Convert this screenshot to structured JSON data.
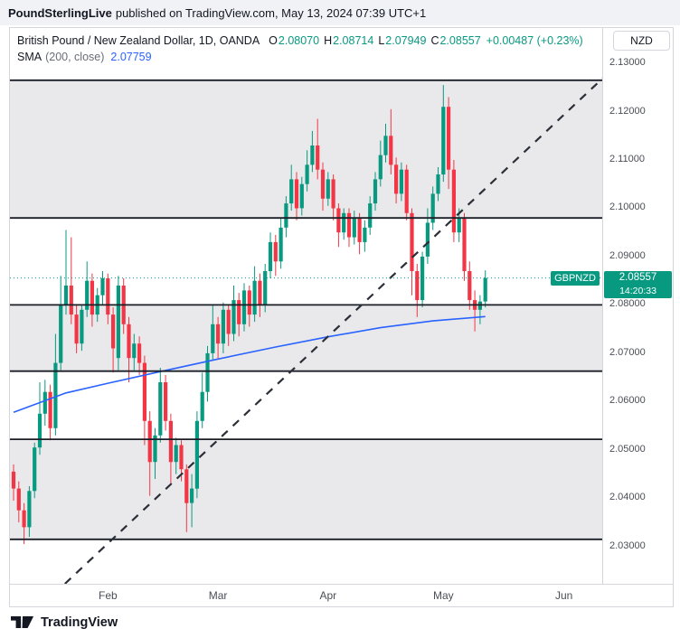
{
  "banner": {
    "brand": "PoundSterlingLive",
    "rest": "published on TradingView.com, May 13, 2024 07:39 UTC+1"
  },
  "header": {
    "title": "British Pound / New Zealand Dollar, 1D, OANDA",
    "o_label": "O",
    "o_value": "2.08070",
    "h_label": "H",
    "h_value": "2.08714",
    "l_label": "L",
    "l_value": "2.07949",
    "c_label": "C",
    "c_value": "2.08557",
    "change": "+0.00487 (+0.23%)",
    "sma_name": "SMA",
    "sma_args": "(200, close)",
    "sma_value": "2.07759"
  },
  "price_tag": {
    "symbol": "GBPNZD",
    "price": "2.08557",
    "countdown": "14:20:33"
  },
  "axis": {
    "currency": "NZD"
  },
  "footer": {
    "brand": "TradingView"
  },
  "chart_data": {
    "type": "candlestick",
    "title": "British Pound / New Zealand Dollar, 1D, OANDA",
    "symbol": "GBPNZD",
    "interval": "1D",
    "price_min": 2.0223,
    "price_max": 2.1373,
    "slots": 113,
    "up_color": "#089981",
    "down_color": "#f23645",
    "band_color": "#e9e9eb",
    "current_price": 2.08557,
    "y_ticks": [
      "2.13000",
      "2.12000",
      "2.11000",
      "2.10000",
      "2.09000",
      "2.08000",
      "2.07000",
      "2.06000",
      "2.05000",
      "2.04000",
      "2.03000"
    ],
    "x_ticks": [
      {
        "slot": 18,
        "label": "Feb"
      },
      {
        "slot": 39,
        "label": "Mar"
      },
      {
        "slot": 60,
        "label": "Apr"
      },
      {
        "slot": 82,
        "label": "May"
      },
      {
        "slot": 105,
        "label": "Jun"
      }
    ],
    "levels": [
      2.1265,
      2.098,
      2.08,
      2.0663,
      2.0522,
      2.0315
    ],
    "bands": [
      [
        2.1265,
        2.098
      ],
      [
        2.08,
        2.0663
      ],
      [
        2.0522,
        2.0315
      ]
    ],
    "trendline": {
      "x1_slot": 9.8,
      "p1": 2.0223,
      "x2_slot": 112.8,
      "p2": 2.1273
    },
    "sma200": {
      "color": "#2962ff",
      "points": [
        [
          0,
          2.0578
        ],
        [
          10,
          2.0618
        ],
        [
          18,
          2.0638
        ],
        [
          28,
          2.0662
        ],
        [
          39,
          2.0688
        ],
        [
          50,
          2.0713
        ],
        [
          60,
          2.0734
        ],
        [
          70,
          2.0753
        ],
        [
          80,
          2.0767
        ],
        [
          90,
          2.0776
        ]
      ]
    },
    "candles": [
      [
        2.0455,
        2.047,
        2.0395,
        2.042
      ],
      [
        2.042,
        2.0435,
        2.035,
        2.0375
      ],
      [
        2.0375,
        2.039,
        2.0305,
        2.034
      ],
      [
        2.034,
        2.0425,
        2.032,
        2.0415
      ],
      [
        2.0415,
        2.0515,
        2.04,
        2.0505
      ],
      [
        2.0505,
        2.064,
        2.049,
        2.0575
      ],
      [
        2.0575,
        2.0645,
        2.055,
        2.062
      ],
      [
        2.062,
        2.0635,
        2.052,
        2.0545
      ],
      [
        2.0545,
        2.074,
        2.053,
        2.068
      ],
      [
        2.068,
        2.086,
        2.0665,
        2.08
      ],
      [
        2.08,
        2.0955,
        2.078,
        2.084
      ],
      [
        2.084,
        2.094,
        2.076,
        2.078
      ],
      [
        2.078,
        2.08,
        2.07,
        2.072
      ],
      [
        2.072,
        2.08,
        2.0705,
        2.079
      ],
      [
        2.079,
        2.089,
        2.0775,
        2.085
      ],
      [
        2.085,
        2.0865,
        2.0755,
        2.078
      ],
      [
        2.078,
        2.0835,
        2.0765,
        2.082
      ],
      [
        2.082,
        2.087,
        2.08,
        2.0855
      ],
      [
        2.0855,
        2.0865,
        2.076,
        2.078
      ],
      [
        2.078,
        2.0795,
        2.066,
        2.071
      ],
      [
        2.069,
        2.086,
        2.0665,
        2.084
      ],
      [
        2.084,
        2.0855,
        2.074,
        2.076
      ],
      [
        2.076,
        2.0775,
        2.064,
        2.069
      ],
      [
        2.069,
        2.074,
        2.0665,
        2.072
      ],
      [
        2.072,
        2.0735,
        2.0655,
        2.068
      ],
      [
        2.068,
        2.0695,
        2.051,
        2.056
      ],
      [
        2.056,
        2.058,
        2.0405,
        2.0475
      ],
      [
        2.0475,
        2.0545,
        2.044,
        2.053
      ],
      [
        2.053,
        2.067,
        2.0515,
        2.064
      ],
      [
        2.064,
        2.0655,
        2.054,
        2.056
      ],
      [
        2.056,
        2.0575,
        2.043,
        2.0475
      ],
      [
        2.0475,
        2.0525,
        2.045,
        2.051
      ],
      [
        2.051,
        2.052,
        2.0435,
        2.046
      ],
      [
        2.046,
        2.047,
        2.033,
        2.039
      ],
      [
        2.039,
        2.045,
        2.034,
        2.042
      ],
      [
        2.042,
        2.058,
        2.04,
        2.056
      ],
      [
        2.056,
        2.066,
        2.0545,
        2.062
      ],
      [
        2.062,
        2.0715,
        2.06,
        2.07
      ],
      [
        2.07,
        2.08,
        2.0685,
        2.076
      ],
      [
        2.076,
        2.0775,
        2.069,
        2.072
      ],
      [
        2.072,
        2.0805,
        2.07,
        2.079
      ],
      [
        2.079,
        2.08,
        2.0715,
        2.074
      ],
      [
        2.074,
        2.084,
        2.0725,
        2.081
      ],
      [
        2.081,
        2.0825,
        2.0735,
        2.076
      ],
      [
        2.076,
        2.0845,
        2.0745,
        2.083
      ],
      [
        2.083,
        2.084,
        2.0755,
        2.078
      ],
      [
        2.078,
        2.088,
        2.0765,
        2.085
      ],
      [
        2.085,
        2.0865,
        2.0775,
        2.08
      ],
      [
        2.08,
        2.0885,
        2.0785,
        2.087
      ],
      [
        2.087,
        2.095,
        2.0855,
        2.093
      ],
      [
        2.093,
        2.0945,
        2.086,
        2.089
      ],
      [
        2.089,
        2.098,
        2.0875,
        2.096
      ],
      [
        2.096,
        2.1025,
        2.094,
        2.101
      ],
      [
        2.101,
        2.109,
        2.0995,
        2.106
      ],
      [
        2.106,
        2.1075,
        2.0975,
        2.1
      ],
      [
        2.1,
        2.1065,
        2.0985,
        2.105
      ],
      [
        2.105,
        2.112,
        2.1035,
        2.109
      ],
      [
        2.109,
        2.116,
        2.1075,
        2.113
      ],
      [
        2.113,
        2.1185,
        2.106,
        2.108
      ],
      [
        2.108,
        2.1095,
        2.0995,
        2.102
      ],
      [
        2.102,
        2.1075,
        2.1005,
        2.106
      ],
      [
        2.106,
        2.107,
        2.0975,
        2.1
      ],
      [
        2.1,
        2.101,
        2.092,
        2.095
      ],
      [
        2.095,
        2.1,
        2.0935,
        2.099
      ],
      [
        2.099,
        2.1,
        2.092,
        2.094
      ],
      [
        2.094,
        2.0995,
        2.0925,
        2.098
      ],
      [
        2.098,
        2.099,
        2.0905,
        2.093
      ],
      [
        2.093,
        2.0975,
        2.091,
        2.096
      ],
      [
        2.096,
        2.1025,
        2.0945,
        2.101
      ],
      [
        2.101,
        2.1075,
        2.0995,
        2.106
      ],
      [
        2.106,
        2.114,
        2.1045,
        2.111
      ],
      [
        2.111,
        2.1175,
        2.1095,
        2.115
      ],
      [
        2.115,
        2.1205,
        2.107,
        2.109
      ],
      [
        2.109,
        2.1105,
        2.101,
        2.103
      ],
      [
        2.103,
        2.1095,
        2.1015,
        2.108
      ],
      [
        2.108,
        2.109,
        2.0975,
        2.099
      ],
      [
        2.099,
        2.1,
        2.082,
        2.087
      ],
      [
        2.087,
        2.0885,
        2.0775,
        2.081
      ],
      [
        2.081,
        2.091,
        2.0795,
        2.09
      ],
      [
        2.09,
        2.1,
        2.0885,
        2.097
      ],
      [
        2.097,
        2.1045,
        2.0955,
        2.103
      ],
      [
        2.103,
        2.1085,
        2.1015,
        2.107
      ],
      [
        2.107,
        2.1255,
        2.1055,
        2.121
      ],
      [
        2.121,
        2.123,
        2.104,
        2.108
      ],
      [
        2.108,
        2.11,
        2.093,
        2.095
      ],
      [
        2.095,
        2.1,
        2.093,
        2.098
      ],
      [
        2.098,
        2.099,
        2.085,
        2.087
      ],
      [
        2.087,
        2.089,
        2.079,
        2.081
      ],
      [
        2.081,
        2.083,
        2.0745,
        2.079
      ],
      [
        2.079,
        2.082,
        2.076,
        2.0807
      ],
      [
        2.0807,
        2.08714,
        2.07949,
        2.08557
      ]
    ]
  }
}
